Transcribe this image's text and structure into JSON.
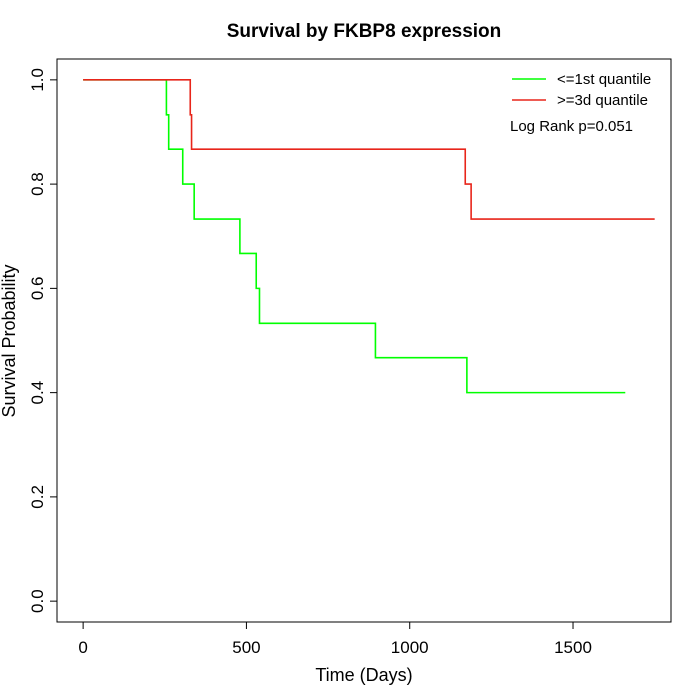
{
  "chart_data": {
    "type": "line",
    "step": true,
    "title": "Survival by FKBP8 expression",
    "xlabel": "Time (Days)",
    "ylabel": "Survival Probability",
    "xlim": [
      -80,
      1800
    ],
    "ylim": [
      -0.04,
      1.04
    ],
    "xticks": [
      0,
      500,
      1000,
      1500
    ],
    "yticks": [
      0.0,
      0.2,
      0.4,
      0.6,
      0.8,
      1.0
    ],
    "xtick_labels": [
      "0",
      "500",
      "1000",
      "1500"
    ],
    "ytick_labels": [
      "0.0",
      "0.2",
      "0.4",
      "0.6",
      "0.8",
      "1.0"
    ],
    "grid": false,
    "legend_position": "top-right",
    "annotation": "Log Rank p=0.051",
    "series": [
      {
        "name": "<=1st quantile",
        "color": "#00ff00",
        "x": [
          0,
          255,
          262,
          305,
          340,
          480,
          530,
          540,
          895,
          1175,
          1660
        ],
        "y": [
          1.0,
          0.933,
          0.867,
          0.8,
          0.733,
          0.667,
          0.6,
          0.533,
          0.467,
          0.4,
          0.4
        ]
      },
      {
        "name": ">=3d quantile",
        "color": "#e8251a",
        "x": [
          0,
          328,
          332,
          1170,
          1188,
          1750
        ],
        "y": [
          1.0,
          0.933,
          0.867,
          0.8,
          0.733,
          0.733
        ]
      }
    ]
  }
}
